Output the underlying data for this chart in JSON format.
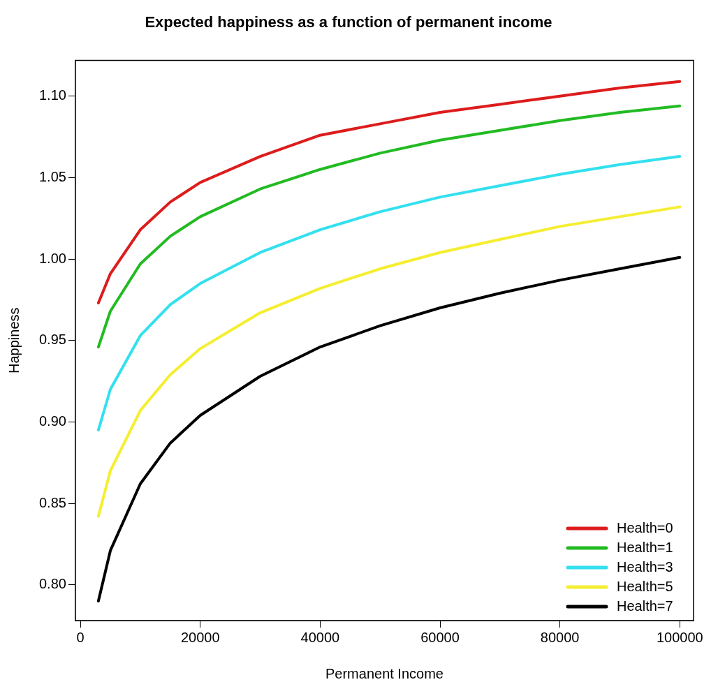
{
  "chart_data": {
    "type": "line",
    "title": "Expected happiness as a function of permanent income",
    "xlabel": "Permanent Income",
    "ylabel": "Happiness",
    "x": [
      3000,
      5000,
      10000,
      15000,
      20000,
      30000,
      40000,
      50000,
      60000,
      70000,
      80000,
      90000,
      100000
    ],
    "xlim": [
      -840,
      102300
    ],
    "xticks": [
      0,
      20000,
      40000,
      60000,
      80000,
      100000
    ],
    "ylim": [
      0.778,
      1.122
    ],
    "yticks": [
      {
        "value": 0.8,
        "label": "0.80"
      },
      0.85,
      {
        "value": 0.9,
        "label": "0.90"
      },
      0.95,
      {
        "value": 1,
        "label": "1.00"
      },
      1.05,
      {
        "value": 1.1,
        "label": "1.10"
      }
    ],
    "grid": false,
    "legend": "bottom right",
    "marker": "none",
    "line_style": "solid",
    "series": [
      {
        "name": "Health=0",
        "color": "#dd1c1c",
        "values": [
          0.973,
          0.991,
          1.018,
          1.035,
          1.047,
          1.063,
          1.076,
          1.083,
          1.09,
          1.095,
          1.1,
          1.105,
          1.109
        ]
      },
      {
        "name": "Health=1",
        "color": "#22bb22",
        "values": [
          0.946,
          0.968,
          0.997,
          1.014,
          1.026,
          1.043,
          1.055,
          1.065,
          1.073,
          1.079,
          1.085,
          1.09,
          1.094
        ]
      },
      {
        "name": "Health=3",
        "color": "#33e0ee",
        "values": [
          0.895,
          0.92,
          0.953,
          0.972,
          0.985,
          1.004,
          1.018,
          1.029,
          1.038,
          1.045,
          1.052,
          1.058,
          1.063
        ]
      },
      {
        "name": "Health=5",
        "color": "#f5ee30",
        "values": [
          0.842,
          0.87,
          0.907,
          0.929,
          0.945,
          0.967,
          0.982,
          0.994,
          1.004,
          1.012,
          1.02,
          1.026,
          1.032
        ]
      },
      {
        "name": "Health=7",
        "color": "#000000",
        "values": [
          0.79,
          0.821,
          0.862,
          0.887,
          0.904,
          0.928,
          0.946,
          0.959,
          0.97,
          0.979,
          0.987,
          0.994,
          1.001
        ]
      }
    ]
  }
}
